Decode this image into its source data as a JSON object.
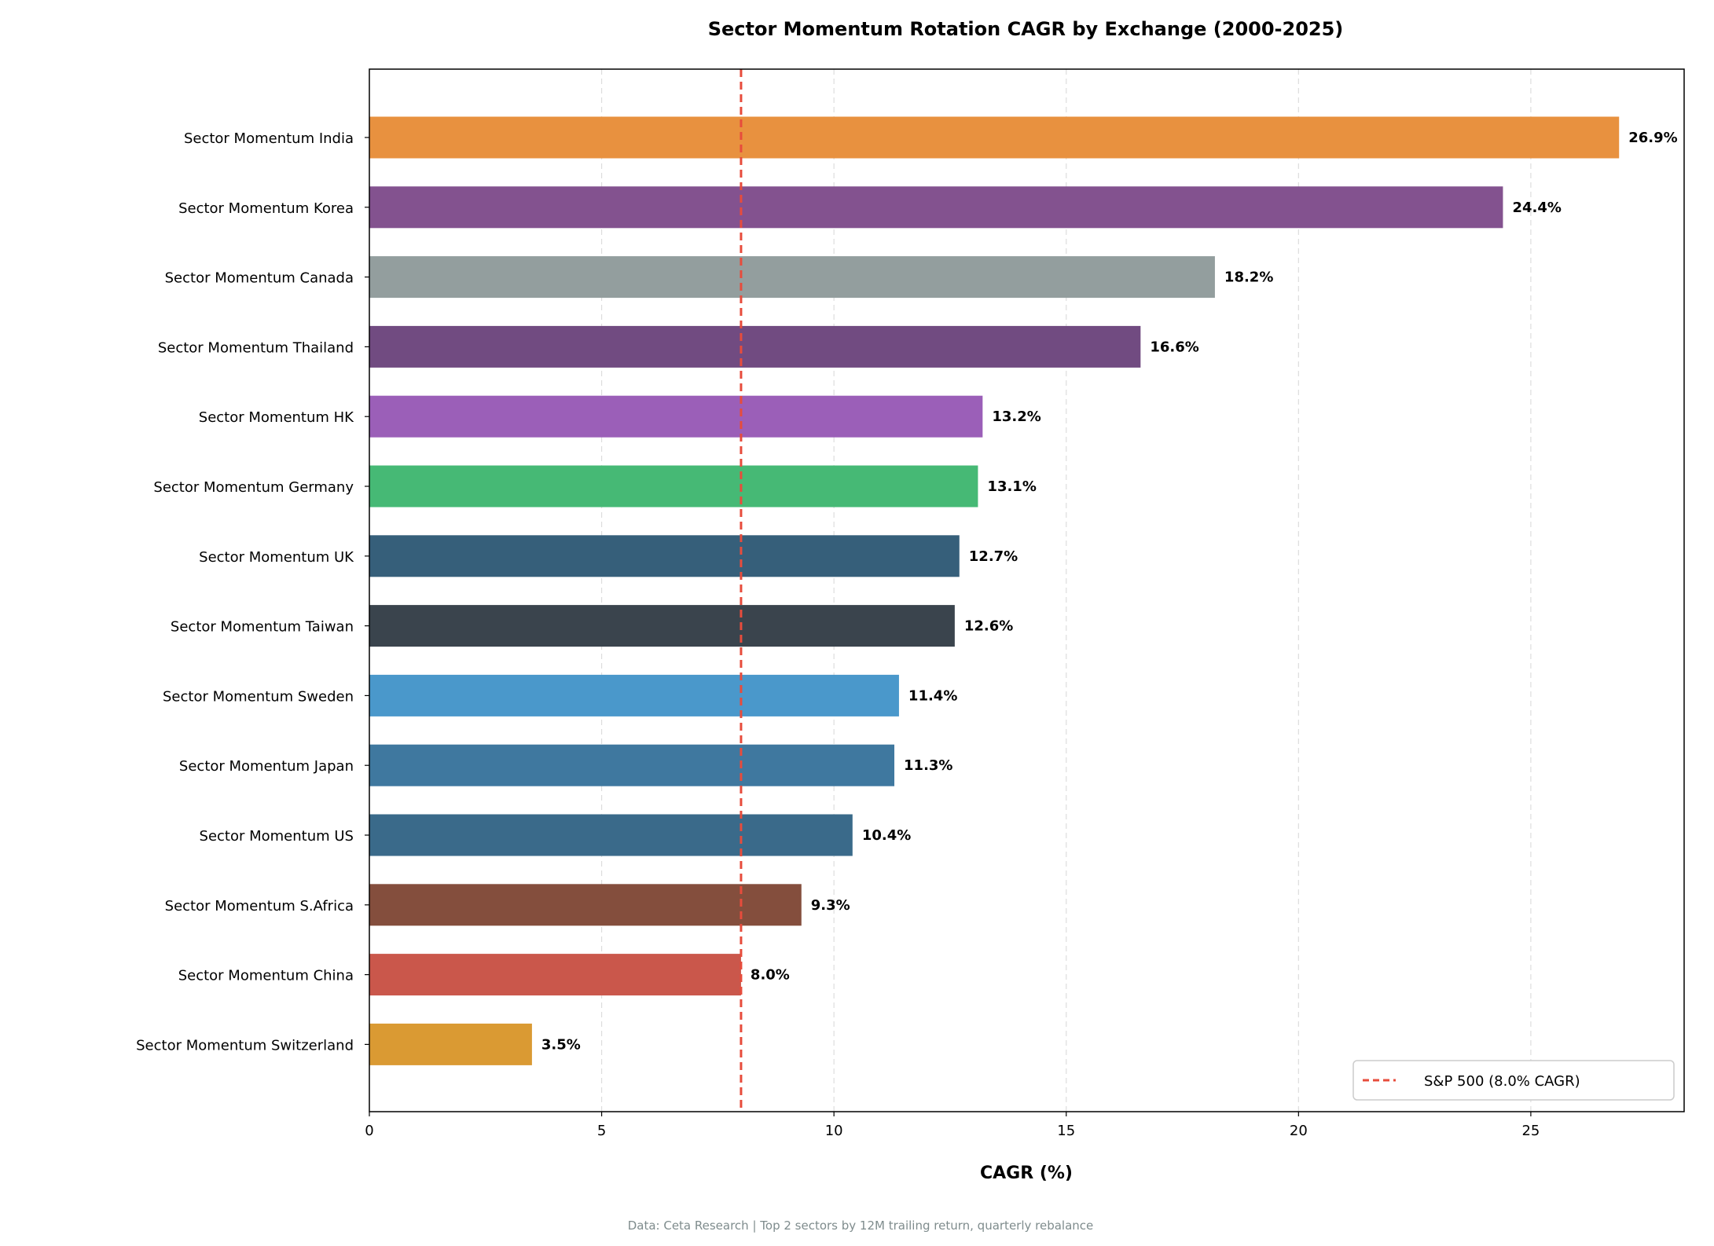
{
  "chart_data": {
    "type": "bar",
    "orientation": "horizontal",
    "title": "Sector Momentum Rotation CAGR by Exchange (2000-2025)",
    "xlabel": "CAGR (%)",
    "ylabel": "",
    "xlim": [
      0,
      28.3
    ],
    "xticks": [
      0,
      5,
      10,
      15,
      20,
      25
    ],
    "grid": "x dashed",
    "categories": [
      "Sector Momentum India",
      "Sector Momentum Korea",
      "Sector Momentum Canada",
      "Sector Momentum Thailand",
      "Sector Momentum HK",
      "Sector Momentum Germany",
      "Sector Momentum UK",
      "Sector Momentum Taiwan",
      "Sector Momentum Sweden",
      "Sector Momentum Japan",
      "Sector Momentum US",
      "Sector Momentum S.Africa",
      "Sector Momentum China",
      "Sector Momentum Switzerland"
    ],
    "values": [
      26.9,
      24.4,
      18.2,
      16.6,
      13.2,
      13.1,
      12.7,
      12.6,
      11.4,
      11.3,
      10.4,
      9.3,
      8.0,
      3.5
    ],
    "data_labels": [
      "26.9%",
      "24.4%",
      "18.2%",
      "16.6%",
      "13.2%",
      "13.1%",
      "12.7%",
      "12.6%",
      "11.4%",
      "11.3%",
      "10.4%",
      "9.3%",
      "8.0%",
      "3.5%"
    ],
    "colors": [
      "#e8913f",
      "#83528f",
      "#939e9e",
      "#714b81",
      "#9b5fb8",
      "#46b975",
      "#365f7a",
      "#3a444d",
      "#4a98cb",
      "#3f789f",
      "#3a6a8a",
      "#844e3d",
      "#ca574b",
      "#da9a33"
    ],
    "reference_line": {
      "value": 8.0,
      "label": "S&P 500 (8.0% CAGR)",
      "color": "#e74c3c",
      "style": "dashed"
    },
    "legend_position": "lower-right",
    "footnote": "Data: Ceta Research | Top 2 sectors by 12M trailing return, quarterly rebalance"
  }
}
